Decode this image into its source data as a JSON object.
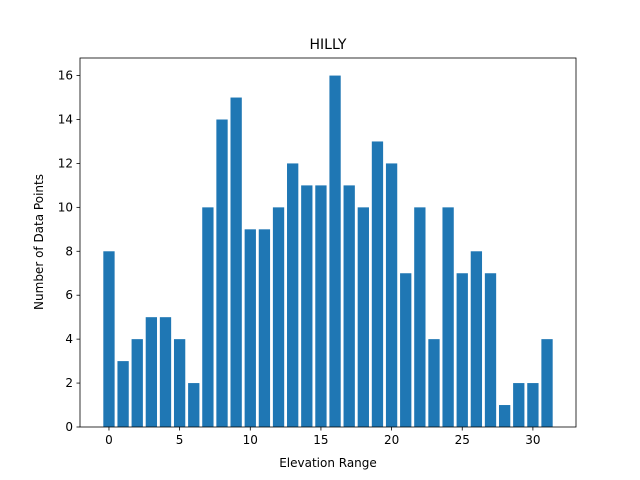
{
  "chart_data": {
    "type": "bar",
    "title": "HILLY",
    "xlabel": "Elevation Range",
    "ylabel": "Number of Data Points",
    "x": [
      0,
      1,
      2,
      3,
      4,
      5,
      6,
      7,
      8,
      9,
      10,
      11,
      12,
      13,
      14,
      15,
      16,
      17,
      18,
      19,
      20,
      21,
      22,
      23,
      24,
      25,
      26,
      27,
      28,
      29,
      30,
      31
    ],
    "values": [
      8,
      3,
      4,
      5,
      5,
      4,
      2,
      10,
      14,
      15,
      9,
      9,
      10,
      12,
      11,
      11,
      16,
      11,
      10,
      13,
      12,
      7,
      10,
      4,
      10,
      7,
      8,
      7,
      1,
      2,
      2,
      4
    ],
    "xlim": [
      -2.05,
      33.05
    ],
    "ylim": [
      0,
      16.8
    ],
    "xticks": [
      0,
      5,
      10,
      15,
      20,
      25,
      30
    ],
    "yticks": [
      0,
      2,
      4,
      6,
      8,
      10,
      12,
      14,
      16
    ],
    "bar_color": "#1f77b4",
    "grid": false
  }
}
